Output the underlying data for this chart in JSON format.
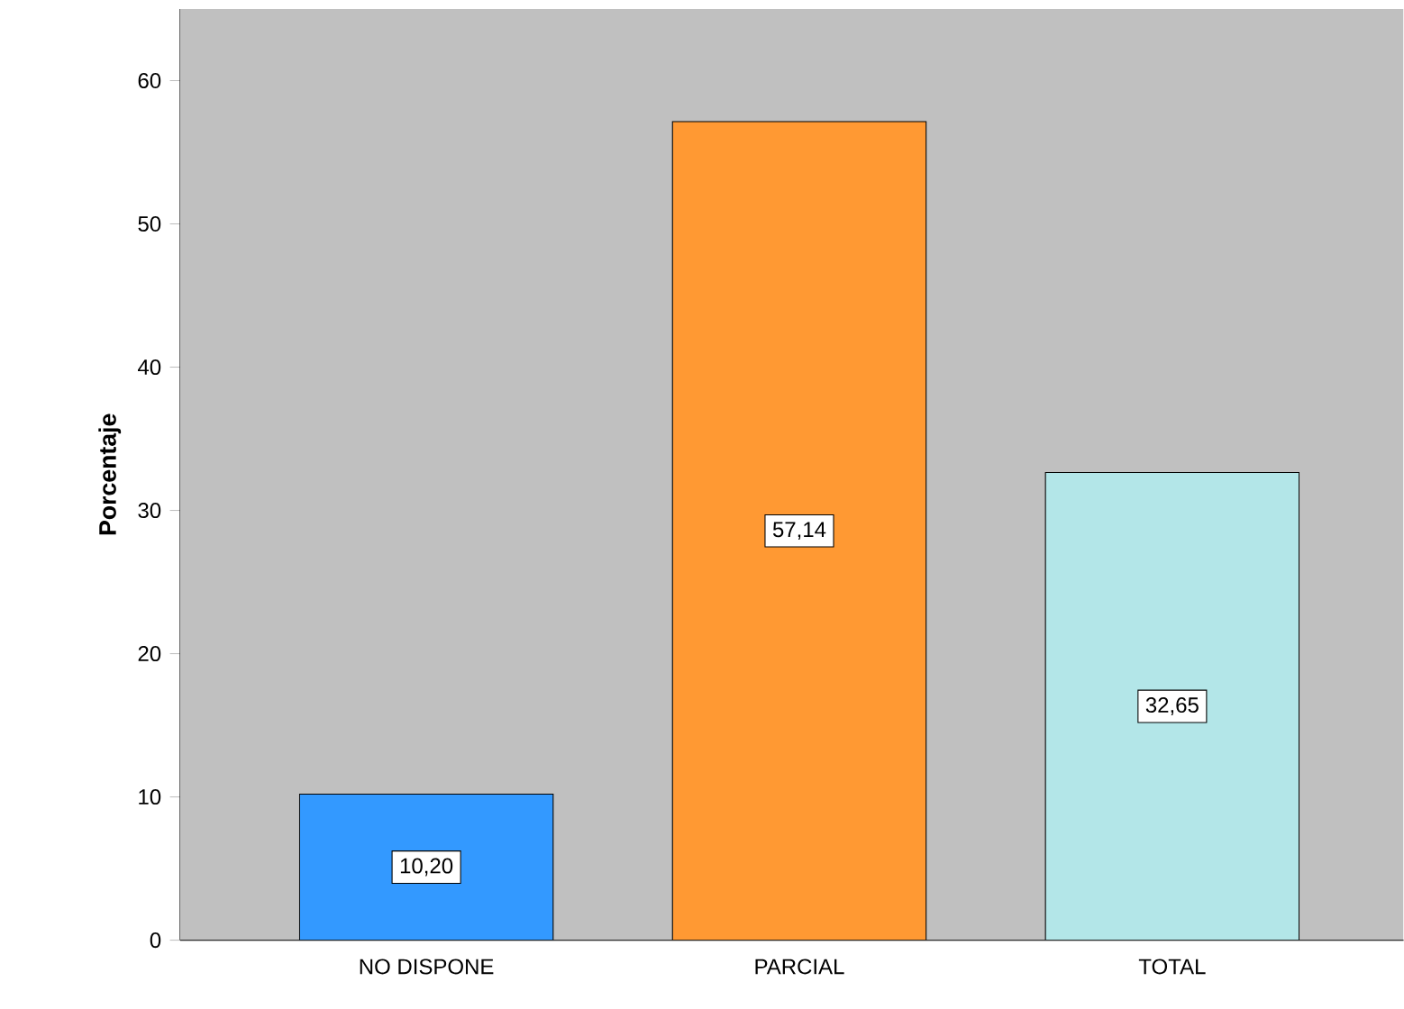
{
  "chart_data": {
    "type": "bar",
    "categories": [
      "NO DISPONE",
      "PARCIAL",
      "TOTAL"
    ],
    "values": [
      10.2,
      57.14,
      32.65
    ],
    "value_labels": [
      "10,20",
      "57,14",
      "32,65"
    ],
    "colors": [
      "#3399ff",
      "#ff9933",
      "#b3e6e8"
    ],
    "ylabel": "Porcentaje",
    "ylim": [
      0,
      65
    ],
    "yticks": [
      0,
      10,
      20,
      30,
      40,
      50,
      60
    ],
    "grid": false
  }
}
